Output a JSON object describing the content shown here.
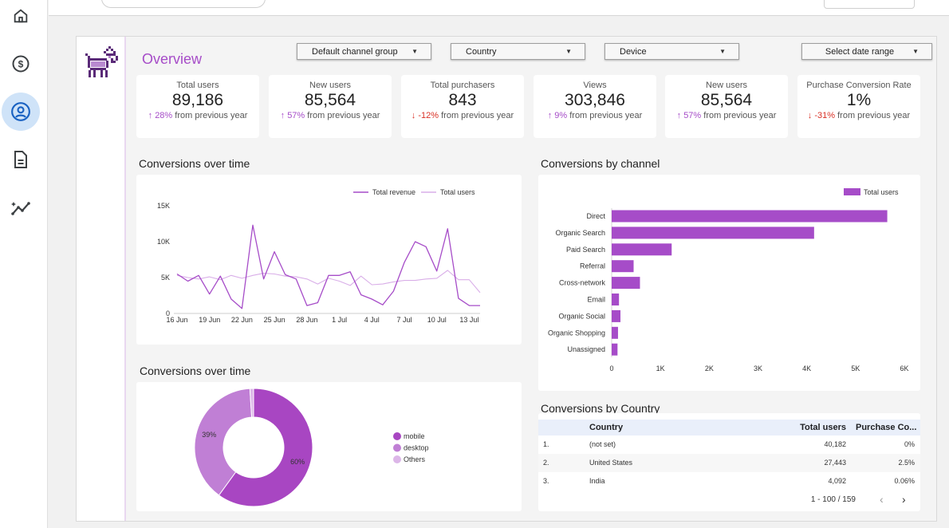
{
  "report": {
    "title": "Overview",
    "filters": [
      {
        "label": "Default channel group"
      },
      {
        "label": "Country"
      },
      {
        "label": "Device"
      },
      {
        "label": "Select date range"
      }
    ]
  },
  "kpis": [
    {
      "label": "Total users",
      "value": "89,186",
      "delta": "28%",
      "suffix": "from previous year",
      "arrow": "↑"
    },
    {
      "label": "New users",
      "value": "85,564",
      "delta": "57%",
      "suffix": "from previous year",
      "arrow": "↑"
    },
    {
      "label": "Total purchasers",
      "value": "843",
      "delta": "-12%",
      "suffix": "from previous year",
      "arrow": "↓"
    },
    {
      "label": "Views",
      "value": "303,846",
      "delta": "9%",
      "suffix": "from previous year",
      "arrow": "↑"
    },
    {
      "label": "New users",
      "value": "85,564",
      "delta": "57%",
      "suffix": "from previous year",
      "arrow": "↑"
    },
    {
      "label": "Purchase Conversion Rate",
      "value": "1%",
      "delta": "-31%",
      "suffix": "from previous year",
      "arrow": "↓"
    }
  ],
  "sections": {
    "line_title": "Conversions over time",
    "donut_title": "Conversions over time",
    "bar_title": "Conversions by channel",
    "table_title": "Conversions by Country"
  },
  "colors": {
    "accent": "#a64cc8",
    "accent_light": "#d9aee8",
    "donut_mobile": "#a846c2",
    "donut_desktop": "#c07fd5",
    "donut_others": "#dcb6e8"
  },
  "chart_data": [
    {
      "type": "line",
      "title": "Conversions over time",
      "x": [
        "16 Jun",
        "17 Jun",
        "18 Jun",
        "19 Jun",
        "20 Jun",
        "21 Jun",
        "22 Jun",
        "23 Jun",
        "24 Jun",
        "25 Jun",
        "26 Jun",
        "27 Jun",
        "28 Jun",
        "29 Jun",
        "30 Jun",
        "1 Jul",
        "2 Jul",
        "3 Jul",
        "4 Jul",
        "5 Jul",
        "6 Jul",
        "7 Jul",
        "8 Jul",
        "9 Jul",
        "10 Jul",
        "11 Jul",
        "12 Jul",
        "13 Jul",
        "14 Jul"
      ],
      "x_tick_labels": [
        "16 Jun",
        "19 Jun",
        "22 Jun",
        "25 Jun",
        "28 Jun",
        "1 Jul",
        "4 Jul",
        "7 Jul",
        "10 Jul",
        "13 Jul"
      ],
      "y_tick_labels": [
        "15K",
        "10K",
        "5K",
        "0"
      ],
      "ylim": [
        0,
        15000
      ],
      "series": [
        {
          "name": "Total revenue",
          "values": [
            5500,
            4500,
            5300,
            2700,
            5200,
            2000,
            700,
            12300,
            4800,
            8600,
            5400,
            4800,
            1100,
            1500,
            5300,
            5300,
            5800,
            2600,
            2000,
            1200,
            3100,
            7100,
            10000,
            9300,
            5900,
            11800,
            2100,
            1100,
            1100
          ]
        },
        {
          "name": "Total users",
          "values": [
            5300,
            5000,
            4800,
            5100,
            4700,
            5300,
            4900,
            5300,
            5600,
            5500,
            5200,
            5100,
            4800,
            4100,
            4900,
            4500,
            3900,
            5200,
            4000,
            4100,
            4400,
            4600,
            4600,
            4800,
            4900,
            6000,
            4700,
            4700,
            2900
          ]
        }
      ]
    },
    {
      "type": "bar",
      "title": "Conversions by channel",
      "categories": [
        "Direct",
        "Organic Search",
        "Paid Search",
        "Referral",
        "Cross-network",
        "Email",
        "Organic Social",
        "Organic Shopping",
        "Unassigned"
      ],
      "series": [
        {
          "name": "Total users",
          "values": [
            5650,
            4150,
            1230,
            450,
            580,
            150,
            180,
            130,
            120
          ]
        }
      ],
      "x_tick_labels": [
        "0",
        "1K",
        "2K",
        "3K",
        "4K",
        "5K",
        "6K"
      ],
      "xlim": [
        0,
        6000
      ]
    },
    {
      "type": "pie",
      "title": "Conversions over time",
      "categories": [
        "mobile",
        "desktop",
        "Others"
      ],
      "values": [
        60,
        39,
        1
      ],
      "value_labels": [
        "60%",
        "39%",
        ""
      ]
    },
    {
      "type": "table",
      "title": "Conversions by Country",
      "columns": [
        "Country",
        "Total users",
        "Purchase Co..."
      ],
      "rows": [
        {
          "rank": "1.",
          "country": "(not set)",
          "users": "40,182",
          "rate": "0%"
        },
        {
          "rank": "2.",
          "country": "United States",
          "users": "27,443",
          "rate": "2.5%"
        },
        {
          "rank": "3.",
          "country": "India",
          "users": "4,092",
          "rate": "0.06%"
        }
      ],
      "pagination": "1 - 100 / 159"
    }
  ]
}
